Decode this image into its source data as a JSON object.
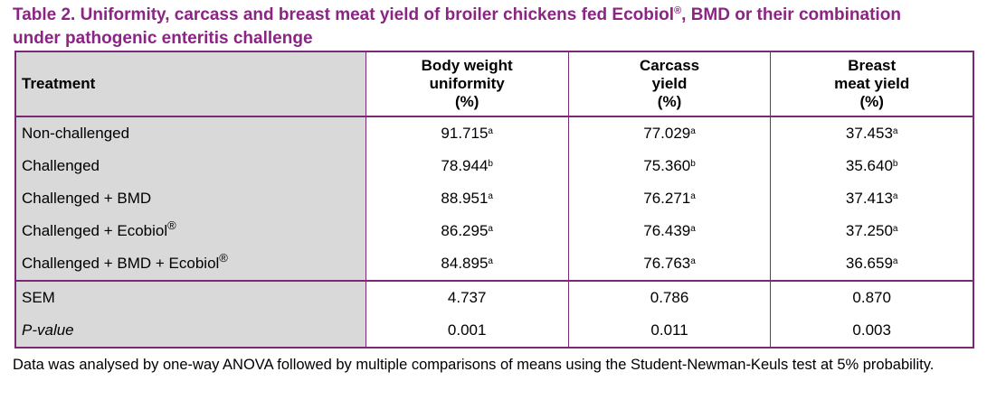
{
  "title": {
    "prefix": "Table 2.  Uniformity, carcass and breast meat yield of broiler chickens fed Ecobiol",
    "reg": "®",
    "suffix_line1": ", BMD or their combination",
    "line2": "under pathogenic enteritis challenge"
  },
  "table": {
    "headers": [
      {
        "lines": [
          "Treatment"
        ]
      },
      {
        "lines": [
          "Body weight",
          "uniformity",
          "(%)"
        ]
      },
      {
        "lines": [
          "Carcass",
          "yield",
          "(%)"
        ]
      },
      {
        "lines": [
          "Breast",
          "meat yield",
          "(%)"
        ]
      }
    ],
    "rows": [
      {
        "treatment": "Non-challenged",
        "treatment_sup": "",
        "values": [
          {
            "v": "91.715",
            "s": "a"
          },
          {
            "v": "77.029",
            "s": "a"
          },
          {
            "v": "37.453",
            "s": "a"
          }
        ]
      },
      {
        "treatment": "Challenged",
        "treatment_sup": "",
        "values": [
          {
            "v": "78.944",
            "s": "b"
          },
          {
            "v": "75.360",
            "s": "b"
          },
          {
            "v": "35.640",
            "s": "b"
          }
        ]
      },
      {
        "treatment": "Challenged + BMD",
        "treatment_sup": "",
        "values": [
          {
            "v": "88.951",
            "s": "a"
          },
          {
            "v": "76.271",
            "s": "a"
          },
          {
            "v": "37.413",
            "s": "a"
          }
        ]
      },
      {
        "treatment": "Challenged + Ecobiol",
        "treatment_sup": "®",
        "values": [
          {
            "v": "86.295",
            "s": "a"
          },
          {
            "v": "76.439",
            "s": "a"
          },
          {
            "v": "37.250",
            "s": "a"
          }
        ]
      },
      {
        "treatment": "Challenged + BMD + Ecobiol",
        "treatment_sup": "®",
        "values": [
          {
            "v": "84.895",
            "s": "a"
          },
          {
            "v": "76.763",
            "s": "a"
          },
          {
            "v": "36.659",
            "s": "a"
          }
        ]
      }
    ],
    "stats": [
      {
        "label": "SEM",
        "italic": false,
        "values": [
          "4.737",
          "0.786",
          "0.870"
        ]
      },
      {
        "label": "P-value",
        "italic": true,
        "values": [
          "0.001",
          "0.011",
          "0.003"
        ]
      }
    ]
  },
  "note": "Data was analysed by one-way ANOVA followed by multiple comparisons of means using the Student-Newman-Keuls test at 5% probability.",
  "colors": {
    "title": "#8a2583",
    "border": "#7a2a75",
    "label_bg": "#d9d9d9"
  }
}
